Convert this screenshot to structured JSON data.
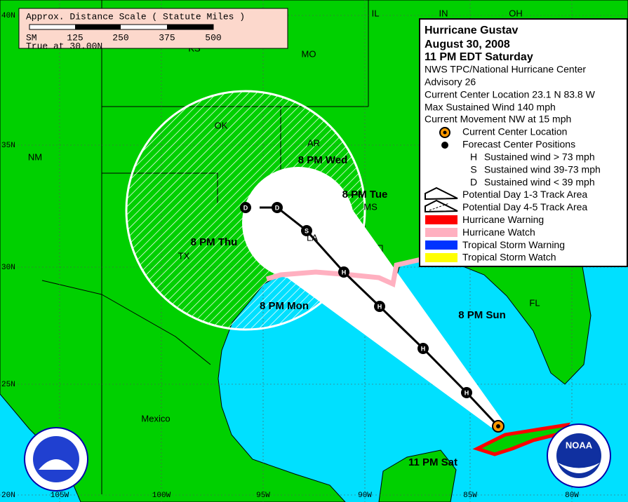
{
  "scale": {
    "title": "Approx. Distance Scale ( Statute Miles )",
    "unit": "SM",
    "marks": [
      "125",
      "250",
      "375",
      "500"
    ],
    "note": "True at 30.00N"
  },
  "legend": {
    "title_lines": [
      "Hurricane Gustav",
      "August 30, 2008",
      "11 PM EDT Saturday"
    ],
    "info_lines": [
      "NWS TPC/National Hurricane Center",
      "Advisory 26",
      "Current Center Location 23.1 N  83.8 W",
      "Max Sustained Wind  140 mph",
      "Current Movement NW at  15 mph"
    ],
    "items": [
      {
        "label": "Current Center Location"
      },
      {
        "label": "Forecast Center Positions"
      },
      {
        "key": "H",
        "label": "Sustained wind > 73 mph"
      },
      {
        "key": "S",
        "label": "Sustained wind 39-73 mph"
      },
      {
        "key": "D",
        "label": "Sustained wind < 39 mph"
      },
      {
        "label": "Potential Day 1-3 Track Area"
      },
      {
        "label": "Potential Day 4-5 Track Area"
      },
      {
        "label": "Hurricane Warning"
      },
      {
        "label": "Hurricane Watch"
      },
      {
        "label": "Tropical Storm Warning"
      },
      {
        "label": "Tropical Storm Watch"
      }
    ]
  },
  "map": {
    "regions": [
      "IL",
      "IN",
      "OH",
      "MO",
      "KS",
      "OK",
      "AR",
      "NM",
      "TX",
      "MS",
      "LA",
      "FL",
      "Mexico"
    ],
    "latitudes": [
      "40N",
      "35N",
      "30N",
      "25N",
      "20N"
    ],
    "longitudes": [
      "105W",
      "100W",
      "95W",
      "90W",
      "85W",
      "80W"
    ],
    "forecast_times": [
      "8 PM Wed",
      "8 PM Tue",
      "8 PM Thu",
      "8 PM Mon",
      "8 PM Sun",
      "11 PM Sat"
    ],
    "track_points": [
      "H",
      "H",
      "H",
      "H",
      "S",
      "D",
      "D"
    ]
  },
  "logos": {
    "noaa": "NOAA"
  }
}
